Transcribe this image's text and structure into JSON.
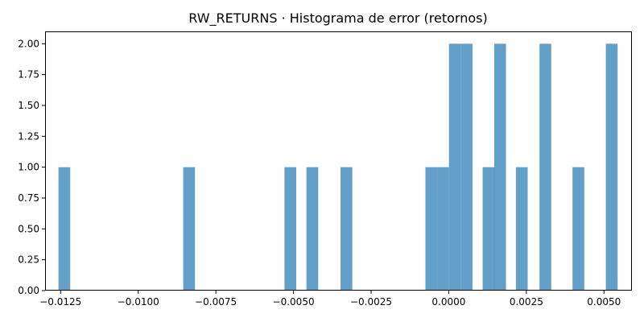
{
  "chart_data": {
    "type": "bar",
    "title": "RW_RETURNS · Histograma de error (retornos)",
    "xlabel": "",
    "ylabel": "",
    "bar_color": "#1f77b4",
    "bar_opacity": 0.7,
    "grid": false,
    "xlim": [
      -0.013,
      0.0059
    ],
    "ylim": [
      0,
      2.1
    ],
    "bin_width": 0.000379,
    "bins": [
      {
        "x0": -0.012569,
        "count": 1
      },
      {
        "x0": -0.008551,
        "count": 1
      },
      {
        "x0": -0.00529,
        "count": 1
      },
      {
        "x0": -0.004583,
        "count": 1
      },
      {
        "x0": -0.003485,
        "count": 1
      },
      {
        "x0": -0.000751,
        "count": 1
      },
      {
        "x0": -0.000372,
        "count": 1
      },
      {
        "x0": 7e-06,
        "count": 2
      },
      {
        "x0": 0.000386,
        "count": 2
      },
      {
        "x0": 0.001093,
        "count": 1
      },
      {
        "x0": 0.001465,
        "count": 2
      },
      {
        "x0": 0.002164,
        "count": 1
      },
      {
        "x0": 0.002923,
        "count": 2
      },
      {
        "x0": 0.003987,
        "count": 1
      },
      {
        "x0": 0.005059,
        "count": 2
      }
    ],
    "x_ticks": [
      {
        "value": -0.0125,
        "label": "−0.0125"
      },
      {
        "value": -0.01,
        "label": "−0.0100"
      },
      {
        "value": -0.0075,
        "label": "−0.0075"
      },
      {
        "value": -0.005,
        "label": "−0.0050"
      },
      {
        "value": -0.0025,
        "label": "−0.0025"
      },
      {
        "value": 0.0,
        "label": "0.0000"
      },
      {
        "value": 0.0025,
        "label": "0.0025"
      },
      {
        "value": 0.005,
        "label": "0.0050"
      }
    ],
    "y_ticks": [
      {
        "value": 0.0,
        "label": "0.00"
      },
      {
        "value": 0.25,
        "label": "0.25"
      },
      {
        "value": 0.5,
        "label": "0.50"
      },
      {
        "value": 0.75,
        "label": "0.75"
      },
      {
        "value": 1.0,
        "label": "1.00"
      },
      {
        "value": 1.25,
        "label": "1.25"
      },
      {
        "value": 1.5,
        "label": "1.50"
      },
      {
        "value": 1.75,
        "label": "1.75"
      },
      {
        "value": 2.0,
        "label": "2.00"
      }
    ]
  }
}
